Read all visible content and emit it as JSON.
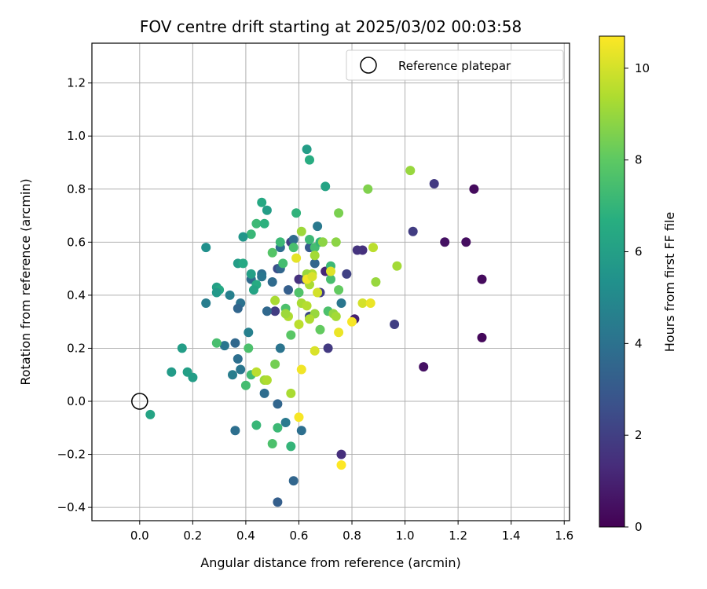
{
  "chart_data": {
    "type": "scatter",
    "title": "FOV centre drift starting at 2025/03/02 00:03:58",
    "xlabel": "Angular distance from reference (arcmin)",
    "ylabel": "Rotation from reference (arcmin)",
    "xlim": [
      -0.18,
      1.62
    ],
    "ylim": [
      -0.45,
      1.35
    ],
    "xticks": [
      0.0,
      0.2,
      0.4,
      0.6,
      0.8,
      1.0,
      1.2,
      1.4,
      1.6
    ],
    "xtick_labels": [
      "0.0",
      "0.2",
      "0.4",
      "0.6",
      "0.8",
      "1.0",
      "1.2",
      "1.4",
      "1.6"
    ],
    "yticks": [
      -0.4,
      -0.2,
      0.0,
      0.2,
      0.4,
      0.6,
      0.8,
      1.0,
      1.2
    ],
    "ytick_labels": [
      "−0.4",
      "−0.2",
      "0.0",
      "0.2",
      "0.4",
      "0.6",
      "0.8",
      "1.0",
      "1.2"
    ],
    "grid": true,
    "legend": {
      "position": "top-right",
      "label": "Reference platepar"
    },
    "reference_point": {
      "x": 0.0,
      "y": 0.0
    },
    "colorbar": {
      "label": "Hours from first FF file",
      "range": [
        0,
        10.7
      ],
      "ticks": [
        0,
        2,
        4,
        6,
        8,
        10
      ],
      "tick_labels": [
        "0",
        "2",
        "4",
        "6",
        "8",
        "10"
      ],
      "colormap": "viridis"
    },
    "points": [
      {
        "x": 1.26,
        "y": 0.8,
        "c": 0.3
      },
      {
        "x": 1.29,
        "y": 0.46,
        "c": 0.3
      },
      {
        "x": 1.29,
        "y": 0.24,
        "c": 0.2
      },
      {
        "x": 1.23,
        "y": 0.6,
        "c": 0.4
      },
      {
        "x": 1.15,
        "y": 0.6,
        "c": 0.5
      },
      {
        "x": 1.07,
        "y": 0.13,
        "c": 0.5
      },
      {
        "x": 1.11,
        "y": 0.82,
        "c": 1.8
      },
      {
        "x": 1.03,
        "y": 0.64,
        "c": 1.9
      },
      {
        "x": 0.96,
        "y": 0.29,
        "c": 2.0
      },
      {
        "x": 0.84,
        "y": 0.57,
        "c": 1.5
      },
      {
        "x": 0.82,
        "y": 0.57,
        "c": 1.6
      },
      {
        "x": 0.81,
        "y": 0.31,
        "c": 1.0
      },
      {
        "x": 0.78,
        "y": 0.48,
        "c": 2.1
      },
      {
        "x": 0.76,
        "y": -0.2,
        "c": 1.4
      },
      {
        "x": 0.71,
        "y": 0.2,
        "c": 1.8
      },
      {
        "x": 0.68,
        "y": 0.41,
        "c": 1.9
      },
      {
        "x": 0.7,
        "y": 0.49,
        "c": 1.2
      },
      {
        "x": 0.6,
        "y": 0.46,
        "c": 1.5
      },
      {
        "x": 0.57,
        "y": 0.6,
        "c": 2.0
      },
      {
        "x": 0.62,
        "y": 0.46,
        "c": 2.2
      },
      {
        "x": 0.64,
        "y": 0.32,
        "c": 2.4
      },
      {
        "x": 0.52,
        "y": 0.5,
        "c": 2.5
      },
      {
        "x": 0.51,
        "y": 0.34,
        "c": 1.9
      },
      {
        "x": 0.76,
        "y": 0.37,
        "c": 4.2
      },
      {
        "x": 0.67,
        "y": 0.66,
        "c": 4.3
      },
      {
        "x": 0.66,
        "y": 0.52,
        "c": 3.5
      },
      {
        "x": 0.64,
        "y": 0.58,
        "c": 3.0
      },
      {
        "x": 0.58,
        "y": 0.61,
        "c": 3.7
      },
      {
        "x": 0.56,
        "y": 0.42,
        "c": 3.2
      },
      {
        "x": 0.53,
        "y": 0.58,
        "c": 3.8
      },
      {
        "x": 0.53,
        "y": 0.2,
        "c": 4.1
      },
      {
        "x": 0.53,
        "y": 0.5,
        "c": 3.5
      },
      {
        "x": 0.5,
        "y": 0.45,
        "c": 3.7
      },
      {
        "x": 0.48,
        "y": 0.34,
        "c": 3.6
      },
      {
        "x": 0.46,
        "y": 0.48,
        "c": 3.9
      },
      {
        "x": 0.46,
        "y": 0.47,
        "c": 4.2
      },
      {
        "x": 0.42,
        "y": 0.46,
        "c": 3.7
      },
      {
        "x": 0.41,
        "y": 0.26,
        "c": 4.6
      },
      {
        "x": 0.38,
        "y": 0.37,
        "c": 4.0
      },
      {
        "x": 0.37,
        "y": 0.35,
        "c": 3.5
      },
      {
        "x": 0.36,
        "y": 0.22,
        "c": 3.6
      },
      {
        "x": 0.37,
        "y": 0.16,
        "c": 3.9
      },
      {
        "x": 0.38,
        "y": 0.12,
        "c": 4.2
      },
      {
        "x": 0.35,
        "y": 0.1,
        "c": 4.5
      },
      {
        "x": 0.36,
        "y": -0.11,
        "c": 3.9
      },
      {
        "x": 0.34,
        "y": 0.4,
        "c": 4.6
      },
      {
        "x": 0.32,
        "y": 0.21,
        "c": 4.2
      },
      {
        "x": 0.25,
        "y": 0.37,
        "c": 4.5
      },
      {
        "x": 0.47,
        "y": 0.03,
        "c": 3.8
      },
      {
        "x": 0.52,
        "y": -0.01,
        "c": 3.5
      },
      {
        "x": 0.55,
        "y": -0.08,
        "c": 4.3
      },
      {
        "x": 0.61,
        "y": -0.11,
        "c": 3.9
      },
      {
        "x": 0.58,
        "y": -0.3,
        "c": 3.5
      },
      {
        "x": 0.52,
        "y": -0.38,
        "c": 3.2
      },
      {
        "x": 0.63,
        "y": 0.95,
        "c": 5.9
      },
      {
        "x": 0.64,
        "y": 0.91,
        "c": 6.6
      },
      {
        "x": 0.7,
        "y": 0.81,
        "c": 6.2
      },
      {
        "x": 0.46,
        "y": 0.75,
        "c": 6.4
      },
      {
        "x": 0.48,
        "y": 0.72,
        "c": 5.9
      },
      {
        "x": 0.59,
        "y": 0.71,
        "c": 6.9
      },
      {
        "x": 0.44,
        "y": 0.67,
        "c": 7.2
      },
      {
        "x": 0.47,
        "y": 0.67,
        "c": 6.8
      },
      {
        "x": 0.42,
        "y": 0.63,
        "c": 7.1
      },
      {
        "x": 0.39,
        "y": 0.62,
        "c": 5.6
      },
      {
        "x": 0.25,
        "y": 0.58,
        "c": 5.3
      },
      {
        "x": 0.37,
        "y": 0.52,
        "c": 5.9
      },
      {
        "x": 0.39,
        "y": 0.52,
        "c": 6.4
      },
      {
        "x": 0.42,
        "y": 0.48,
        "c": 6.0
      },
      {
        "x": 0.44,
        "y": 0.44,
        "c": 6.5
      },
      {
        "x": 0.43,
        "y": 0.42,
        "c": 6.2
      },
      {
        "x": 0.29,
        "y": 0.43,
        "c": 6.0
      },
      {
        "x": 0.3,
        "y": 0.42,
        "c": 6.4
      },
      {
        "x": 0.29,
        "y": 0.41,
        "c": 5.7
      },
      {
        "x": 0.16,
        "y": 0.2,
        "c": 5.9
      },
      {
        "x": 0.12,
        "y": 0.11,
        "c": 5.8
      },
      {
        "x": 0.18,
        "y": 0.11,
        "c": 6.0
      },
      {
        "x": 0.2,
        "y": 0.09,
        "c": 5.9
      },
      {
        "x": 0.04,
        "y": -0.05,
        "c": 6.2
      },
      {
        "x": 0.29,
        "y": 0.22,
        "c": 7.5
      },
      {
        "x": 0.41,
        "y": 0.2,
        "c": 7.6
      },
      {
        "x": 0.42,
        "y": 0.1,
        "c": 7.3
      },
      {
        "x": 0.4,
        "y": 0.06,
        "c": 7.4
      },
      {
        "x": 0.44,
        "y": -0.09,
        "c": 7.1
      },
      {
        "x": 0.5,
        "y": -0.16,
        "c": 7.6
      },
      {
        "x": 0.52,
        "y": -0.1,
        "c": 7.2
      },
      {
        "x": 0.57,
        "y": -0.17,
        "c": 7.0
      },
      {
        "x": 0.51,
        "y": 0.14,
        "c": 8.4
      },
      {
        "x": 0.5,
        "y": 0.56,
        "c": 7.8
      },
      {
        "x": 0.54,
        "y": 0.52,
        "c": 7.4
      },
      {
        "x": 0.53,
        "y": 0.6,
        "c": 7.2
      },
      {
        "x": 0.58,
        "y": 0.58,
        "c": 7.5
      },
      {
        "x": 0.55,
        "y": 0.35,
        "c": 7.6
      },
      {
        "x": 0.57,
        "y": 0.25,
        "c": 7.9
      },
      {
        "x": 0.6,
        "y": 0.41,
        "c": 7.7
      },
      {
        "x": 0.64,
        "y": 0.61,
        "c": 7.2
      },
      {
        "x": 0.66,
        "y": 0.58,
        "c": 7.4
      },
      {
        "x": 0.68,
        "y": 0.6,
        "c": 7.0
      },
      {
        "x": 0.68,
        "y": 0.27,
        "c": 8.1
      },
      {
        "x": 0.71,
        "y": 0.34,
        "c": 7.6
      },
      {
        "x": 0.72,
        "y": 0.46,
        "c": 7.5
      },
      {
        "x": 0.72,
        "y": 0.51,
        "c": 7.2
      },
      {
        "x": 0.75,
        "y": 0.42,
        "c": 8.1
      },
      {
        "x": 0.75,
        "y": 0.71,
        "c": 8.5
      },
      {
        "x": 0.86,
        "y": 0.8,
        "c": 8.6
      },
      {
        "x": 1.02,
        "y": 0.87,
        "c": 9.0
      },
      {
        "x": 0.97,
        "y": 0.51,
        "c": 9.2
      },
      {
        "x": 0.88,
        "y": 0.58,
        "c": 9.6
      },
      {
        "x": 0.89,
        "y": 0.45,
        "c": 9.0
      },
      {
        "x": 0.74,
        "y": 0.6,
        "c": 8.8
      },
      {
        "x": 0.73,
        "y": 0.33,
        "c": 8.9
      },
      {
        "x": 0.74,
        "y": 0.32,
        "c": 9.2
      },
      {
        "x": 0.69,
        "y": 0.6,
        "c": 8.8
      },
      {
        "x": 0.66,
        "y": 0.55,
        "c": 9.2
      },
      {
        "x": 0.65,
        "y": 0.48,
        "c": 9.4
      },
      {
        "x": 0.63,
        "y": 0.48,
        "c": 9.0
      },
      {
        "x": 0.64,
        "y": 0.44,
        "c": 9.3
      },
      {
        "x": 0.61,
        "y": 0.64,
        "c": 9.1
      },
      {
        "x": 0.61,
        "y": 0.37,
        "c": 9.3
      },
      {
        "x": 0.63,
        "y": 0.36,
        "c": 9.5
      },
      {
        "x": 0.66,
        "y": 0.33,
        "c": 9.0
      },
      {
        "x": 0.64,
        "y": 0.31,
        "c": 9.4
      },
      {
        "x": 0.6,
        "y": 0.29,
        "c": 9.6
      },
      {
        "x": 0.56,
        "y": 0.32,
        "c": 9.4
      },
      {
        "x": 0.55,
        "y": 0.33,
        "c": 9.1
      },
      {
        "x": 0.51,
        "y": 0.38,
        "c": 9.3
      },
      {
        "x": 0.57,
        "y": 0.03,
        "c": 9.3
      },
      {
        "x": 0.47,
        "y": 0.08,
        "c": 9.1
      },
      {
        "x": 0.48,
        "y": 0.08,
        "c": 9.4
      },
      {
        "x": 0.44,
        "y": 0.11,
        "c": 9.6
      },
      {
        "x": 0.72,
        "y": 0.49,
        "c": 10.2
      },
      {
        "x": 0.67,
        "y": 0.41,
        "c": 10.0
      },
      {
        "x": 0.66,
        "y": 0.19,
        "c": 10.1
      },
      {
        "x": 0.75,
        "y": 0.26,
        "c": 10.4
      },
      {
        "x": 0.61,
        "y": 0.12,
        "c": 10.5
      },
      {
        "x": 0.6,
        "y": -0.06,
        "c": 10.6
      },
      {
        "x": 0.76,
        "y": -0.24,
        "c": 10.7
      },
      {
        "x": 0.8,
        "y": 0.3,
        "c": 10.6
      },
      {
        "x": 0.84,
        "y": 0.37,
        "c": 10.0
      },
      {
        "x": 0.87,
        "y": 0.37,
        "c": 10.4
      },
      {
        "x": 0.59,
        "y": 0.54,
        "c": 10.3
      },
      {
        "x": 0.63,
        "y": 0.46,
        "c": 10.5
      },
      {
        "x": 0.65,
        "y": 0.47,
        "c": 10.1
      }
    ]
  }
}
